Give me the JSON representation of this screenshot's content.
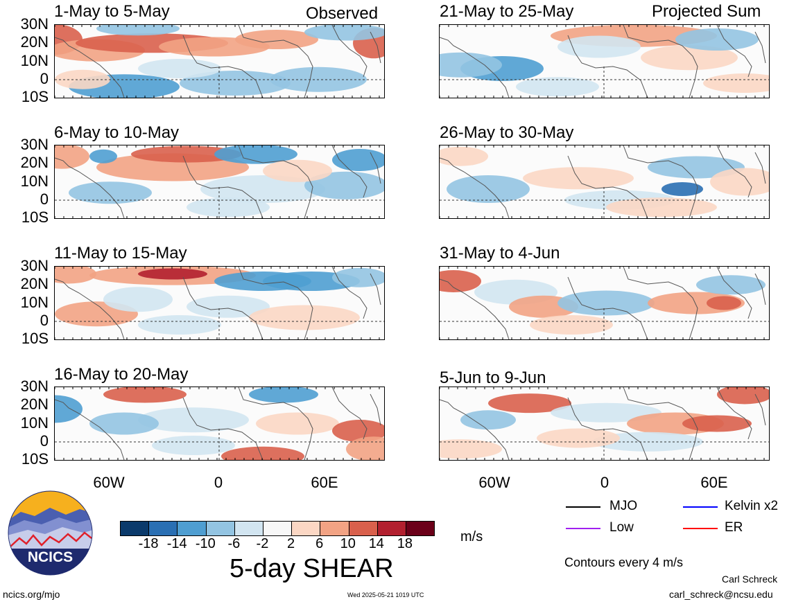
{
  "header": {
    "observed_label": "Observed",
    "projected_label": "Projected Sum"
  },
  "panels": [
    {
      "title": "1-May to 5-May",
      "col": "left"
    },
    {
      "title": "6-May to 10-May",
      "col": "left"
    },
    {
      "title": "11-May to 15-May",
      "col": "left"
    },
    {
      "title": "16-May to 20-May",
      "col": "left"
    },
    {
      "title": "21-May to 25-May",
      "col": "right"
    },
    {
      "title": "26-May to 30-May",
      "col": "right"
    },
    {
      "title": "31-May to 4-Jun",
      "col": "right"
    },
    {
      "title": "5-Jun to 9-Jun",
      "col": "right"
    }
  ],
  "y_axis": [
    "30N",
    "20N",
    "10N",
    "0",
    "10S"
  ],
  "x_axis": [
    "60W",
    "0",
    "60E"
  ],
  "colorbar": {
    "ticks": [
      "-18",
      "-14",
      "-10",
      "-6",
      "-2",
      "2",
      "6",
      "10",
      "14",
      "18"
    ],
    "colors": [
      "#0b3a6b",
      "#2a6fb3",
      "#4f9ed1",
      "#93c4e2",
      "#d2e5f1",
      "#f7f7f7",
      "#fbd7c4",
      "#f2a384",
      "#d9604c",
      "#b2202f",
      "#6b0019"
    ],
    "units": "m/s",
    "title": "5-day SHEAR"
  },
  "legend": {
    "items": [
      {
        "label": "MJO",
        "color": "#000000"
      },
      {
        "label": "Kelvin x2",
        "color": "#0000ff"
      },
      {
        "label": "Low",
        "color": "#a020f0"
      },
      {
        "label": "ER",
        "color": "#ff0000"
      }
    ],
    "contour_note": "Contours every 4 m/s"
  },
  "footer": {
    "logo_text": "NCICS",
    "url": "ncics.org/mjo",
    "timestamp": "Wed 2025-05-21 1019 UTC",
    "author": "Carl Schreck",
    "email": "carl_schreck@ncsu.edu"
  }
}
